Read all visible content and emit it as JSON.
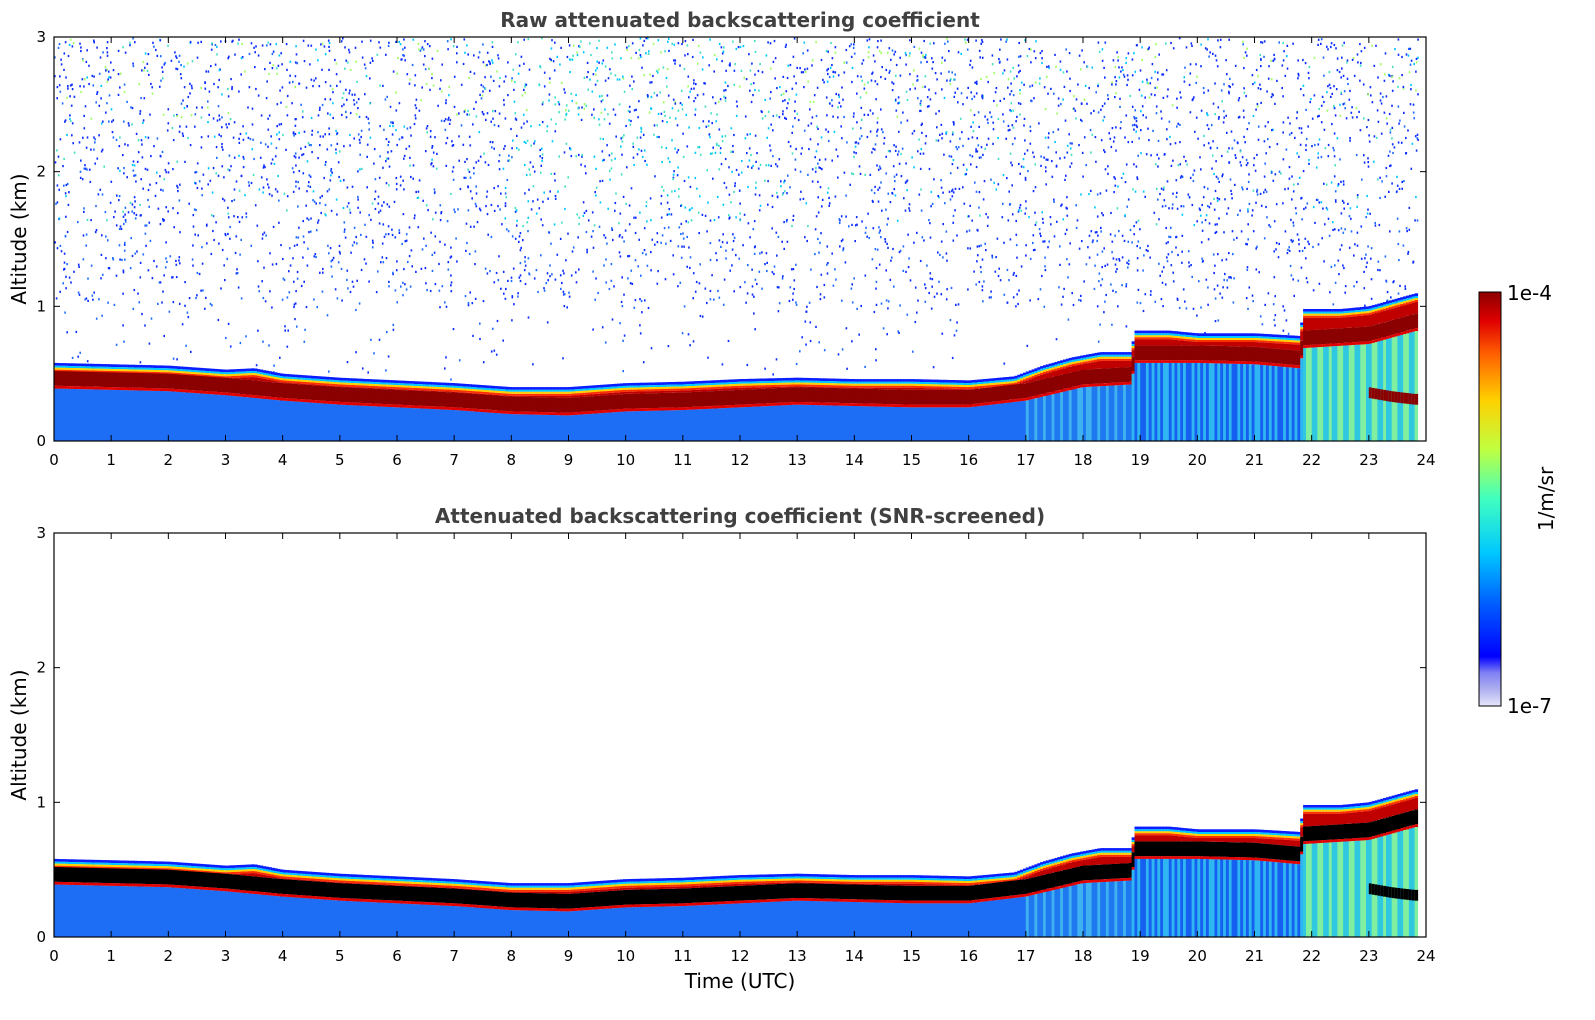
{
  "chart_data": [
    {
      "type": "heatmap",
      "title": "Raw attenuated backscattering coefficient",
      "xlabel": "",
      "ylabel": "Altitude (km)",
      "xlim": [
        0,
        24
      ],
      "ylim": [
        0,
        3
      ],
      "x_ticks": [
        "0",
        "1",
        "2",
        "3",
        "4",
        "5",
        "6",
        "7",
        "8",
        "9",
        "10",
        "11",
        "12",
        "13",
        "14",
        "15",
        "16",
        "17",
        "18",
        "19",
        "20",
        "21",
        "22",
        "23",
        "24"
      ],
      "y_ticks": [
        "0",
        "1",
        "2",
        "3"
      ],
      "x_data_end": 23.85,
      "noise_above_layer": true,
      "layer_top_km": [
        [
          0,
          0.58
        ],
        [
          1,
          0.57
        ],
        [
          2,
          0.56
        ],
        [
          3,
          0.53
        ],
        [
          3.5,
          0.54
        ],
        [
          4,
          0.5
        ],
        [
          5,
          0.47
        ],
        [
          6,
          0.45
        ],
        [
          7,
          0.43
        ],
        [
          8,
          0.4
        ],
        [
          9,
          0.4
        ],
        [
          10,
          0.43
        ],
        [
          11,
          0.44
        ],
        [
          12,
          0.46
        ],
        [
          13,
          0.47
        ],
        [
          14,
          0.46
        ],
        [
          15,
          0.46
        ],
        [
          16,
          0.45
        ],
        [
          16.8,
          0.48
        ],
        [
          17.3,
          0.56
        ],
        [
          17.8,
          0.62
        ],
        [
          18.3,
          0.66
        ],
        [
          18.85,
          0.66
        ],
        [
          18.9,
          0.82
        ],
        [
          19.5,
          0.82
        ],
        [
          20,
          0.8
        ],
        [
          21,
          0.8
        ],
        [
          21.8,
          0.78
        ],
        [
          21.85,
          0.98
        ],
        [
          22.5,
          0.98
        ],
        [
          23,
          1.0
        ],
        [
          23.85,
          1.1
        ]
      ],
      "layer_peak_km": [
        [
          0,
          0.47
        ],
        [
          1,
          0.46
        ],
        [
          2,
          0.45
        ],
        [
          3,
          0.42
        ],
        [
          4,
          0.38
        ],
        [
          5,
          0.35
        ],
        [
          6,
          0.33
        ],
        [
          7,
          0.31
        ],
        [
          8,
          0.28
        ],
        [
          9,
          0.27
        ],
        [
          10,
          0.3
        ],
        [
          11,
          0.31
        ],
        [
          12,
          0.33
        ],
        [
          13,
          0.35
        ],
        [
          14,
          0.34
        ],
        [
          15,
          0.33
        ],
        [
          16,
          0.33
        ],
        [
          17,
          0.38
        ],
        [
          18,
          0.48
        ],
        [
          18.85,
          0.5
        ],
        [
          18.9,
          0.66
        ],
        [
          20,
          0.66
        ],
        [
          21,
          0.65
        ],
        [
          21.8,
          0.62
        ],
        [
          21.85,
          0.77
        ],
        [
          23,
          0.8
        ],
        [
          23.85,
          0.9
        ]
      ],
      "secondary_layer_km": [
        [
          23.0,
          0.36
        ],
        [
          23.4,
          0.33
        ],
        [
          23.8,
          0.31
        ]
      ]
    },
    {
      "type": "heatmap",
      "title": "Attenuated backscattering coefficient (SNR-screened)",
      "xlabel": "Time (UTC)",
      "ylabel": "Altitude (km)",
      "xlim": [
        0,
        24
      ],
      "ylim": [
        0,
        3
      ],
      "x_ticks": [
        "0",
        "1",
        "2",
        "3",
        "4",
        "5",
        "6",
        "7",
        "8",
        "9",
        "10",
        "11",
        "12",
        "13",
        "14",
        "15",
        "16",
        "17",
        "18",
        "19",
        "20",
        "21",
        "22",
        "23",
        "24"
      ],
      "y_ticks": [
        "0",
        "1",
        "2",
        "3"
      ],
      "x_data_end": 23.85,
      "noise_above_layer": false,
      "saturated_color": "#000000"
    }
  ],
  "colorbar": {
    "label": "1/m/sr",
    "max_label": "1e-4",
    "min_label": "1e-7",
    "scale": "log",
    "colormap": "jet",
    "colors": [
      "#e6e6fa",
      "#b0b0f0",
      "#8080f4",
      "#0000ff",
      "#0060ff",
      "#00c8ff",
      "#40ffc0",
      "#c0ff40",
      "#ffd000",
      "#ff6000",
      "#e00000",
      "#8b0000"
    ]
  }
}
